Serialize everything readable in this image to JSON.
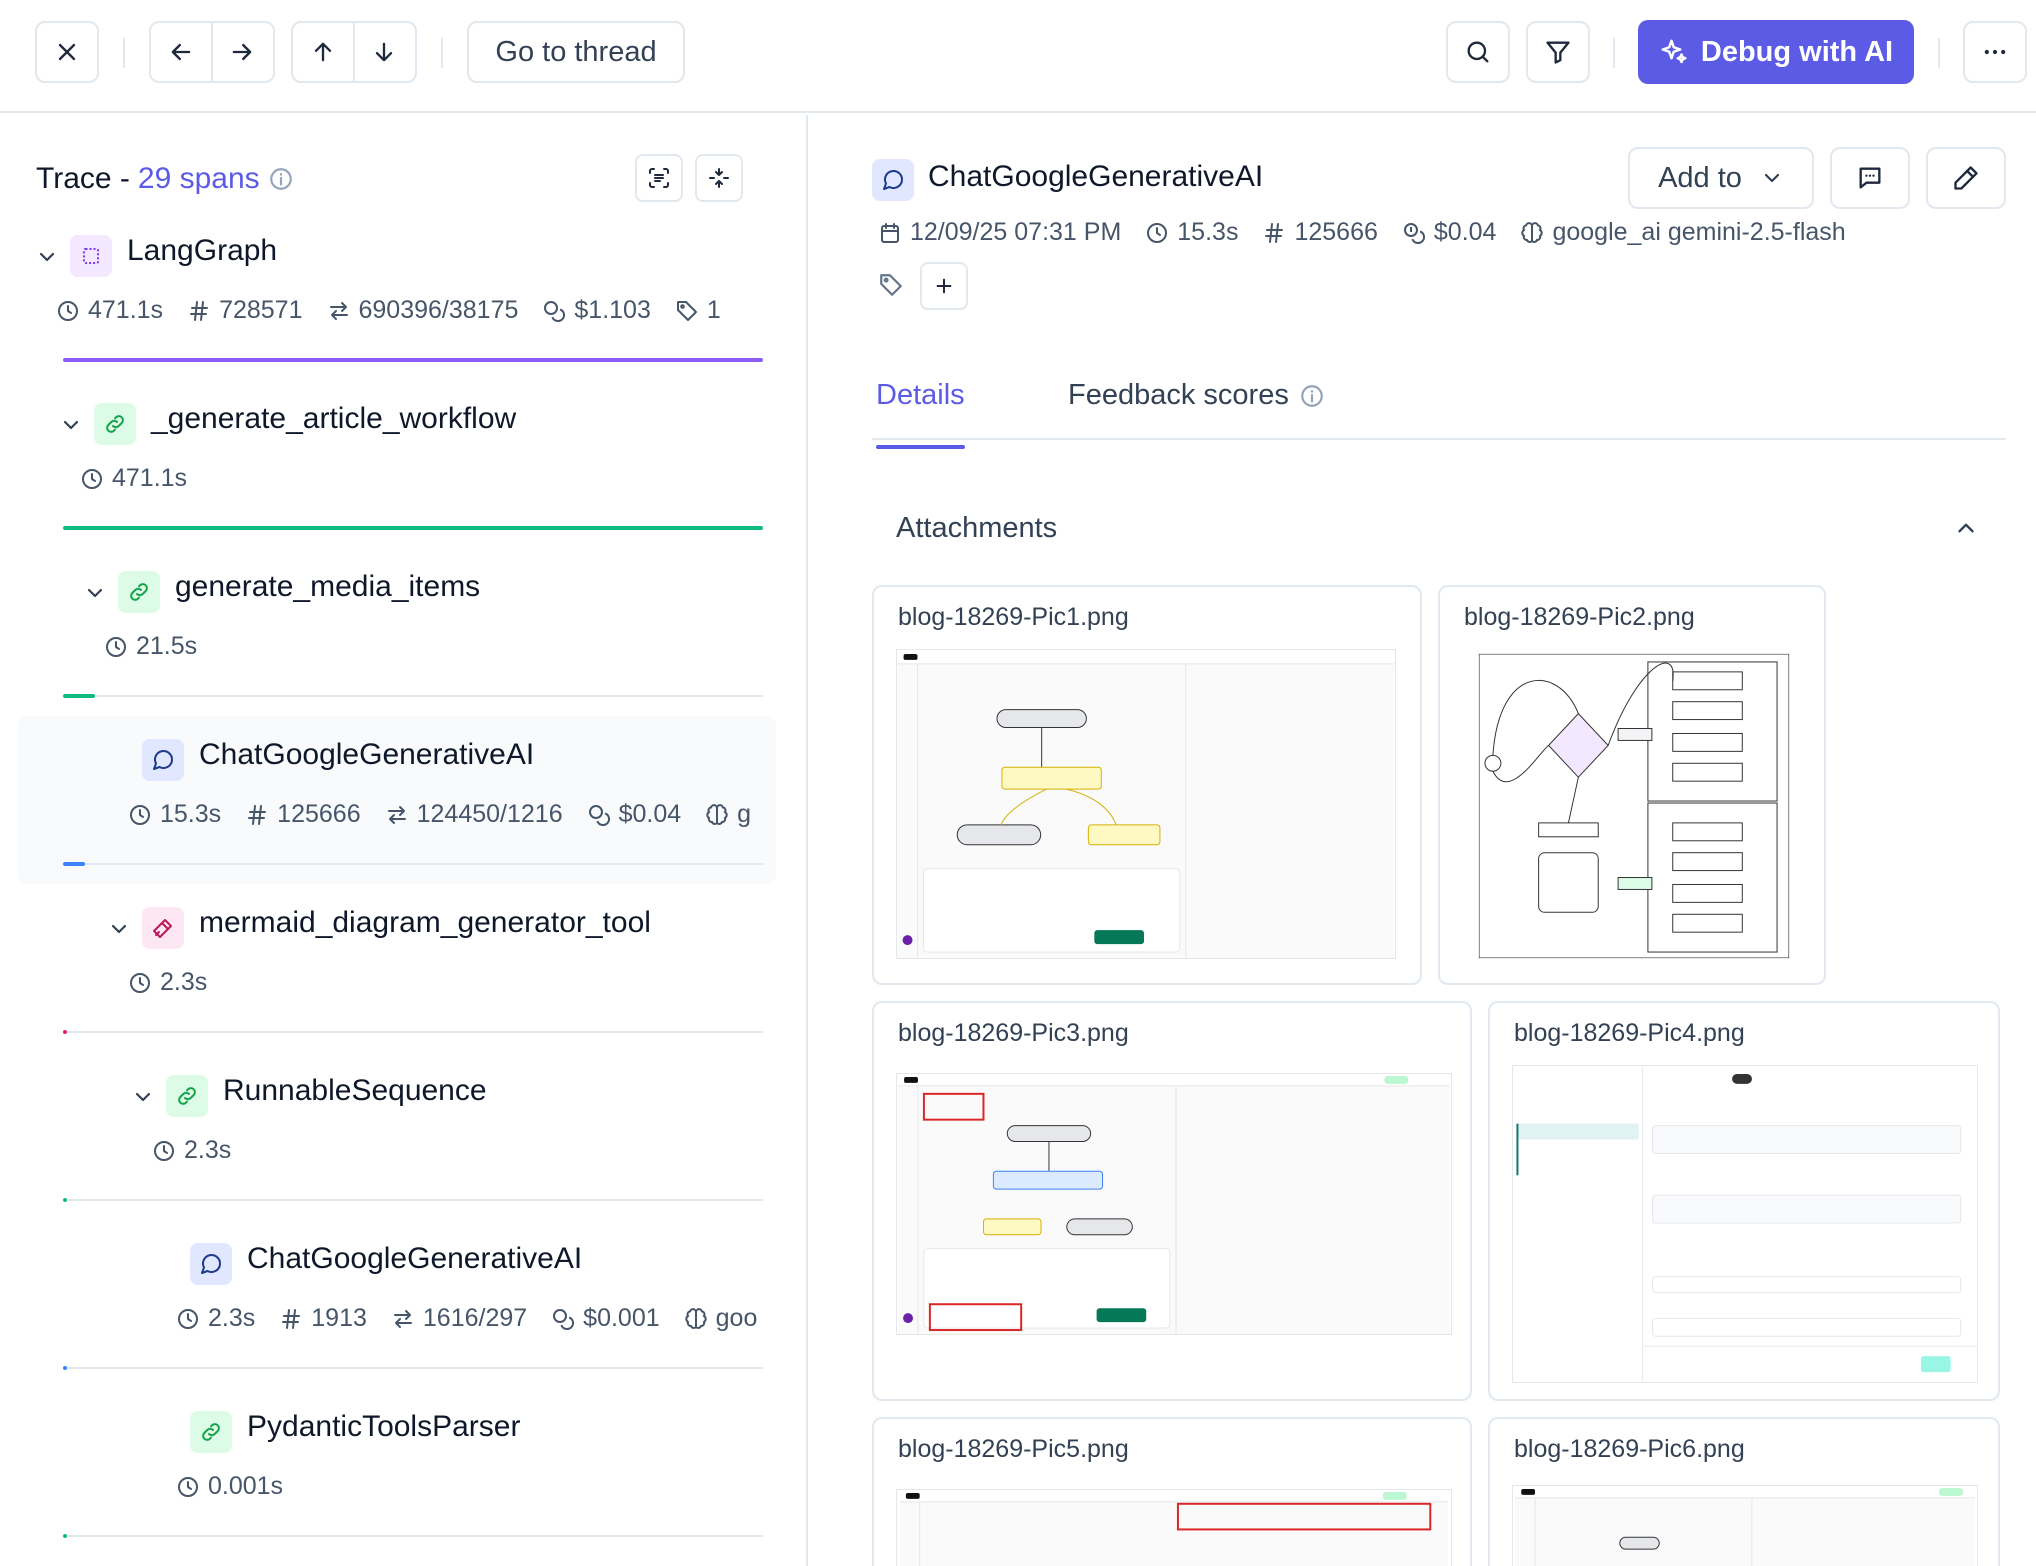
{
  "toolbar": {
    "goto_label": "Go to thread",
    "debug_label": "Debug with AI",
    "accent": "#5b5be6"
  },
  "trace": {
    "label": "Trace - ",
    "spans_label": "29 spans"
  },
  "spans": [
    {
      "name": "LangGraph",
      "type": "graph",
      "duration": "471.1s",
      "tokens": "728571",
      "io": "690396/38175",
      "cost": "$1.103",
      "tags": "1",
      "bar_color": "#8b5cf6",
      "bar_fraction": 1.0
    },
    {
      "name": "_generate_article_workflow",
      "type": "chain",
      "duration": "471.1s",
      "bar_color": "#10b981",
      "bar_fraction": 1.0
    },
    {
      "name": "generate_media_items",
      "type": "chain",
      "duration": "21.5s",
      "bar_color": "#10b981",
      "bar_fraction": 0.046
    },
    {
      "name": "ChatGoogleGenerativeAI",
      "type": "llm",
      "duration": "15.3s",
      "tokens": "125666",
      "io": "124450/1216",
      "cost": "$0.04",
      "model_short": "g",
      "bar_color": "#3b82f6",
      "bar_fraction": 0.032
    },
    {
      "name": "mermaid_diagram_generator_tool",
      "type": "tool",
      "duration": "2.3s",
      "bar_color": "#db2777",
      "bar_fraction": 0.005
    },
    {
      "name": "RunnableSequence",
      "type": "chain",
      "duration": "2.3s",
      "bar_color": "#10b981",
      "bar_fraction": 0.005
    },
    {
      "name": "ChatGoogleGenerativeAI",
      "type": "llm",
      "duration": "2.3s",
      "tokens": "1913",
      "io": "1616/297",
      "cost": "$0.001",
      "model_short": "goo",
      "bar_color": "#3b82f6",
      "bar_fraction": 0.005
    },
    {
      "name": "PydanticToolsParser",
      "type": "chain",
      "duration": "0.001s",
      "bar_color": "#10b981",
      "bar_fraction": 0.0
    }
  ],
  "detail": {
    "title": "ChatGoogleGenerativeAI",
    "datetime": "12/09/25 07:31 PM",
    "duration": "15.3s",
    "tokens": "125666",
    "cost": "$0.04",
    "model": "google_ai gemini-2.5-flash",
    "add_to_label": "Add to",
    "tabs": [
      {
        "label": "Details"
      },
      {
        "label": "Feedback scores"
      }
    ],
    "attachments_label": "Attachments",
    "attachments": [
      {
        "file": "blog-18269-Pic1.png"
      },
      {
        "file": "blog-18269-Pic2.png"
      },
      {
        "file": "blog-18269-Pic3.png"
      },
      {
        "file": "blog-18269-Pic4.png"
      },
      {
        "file": "blog-18269-Pic5.png"
      },
      {
        "file": "blog-18269-Pic6.png"
      }
    ]
  }
}
